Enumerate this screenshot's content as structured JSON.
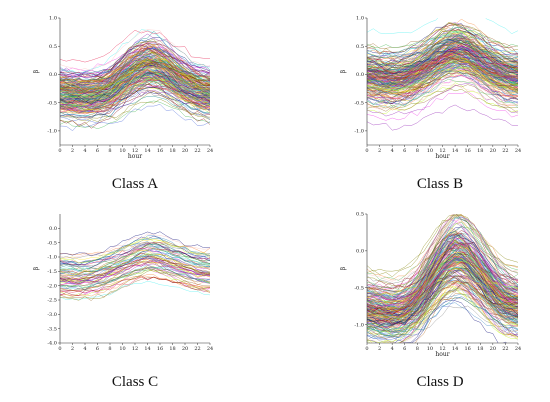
{
  "figure": {
    "background": "#ffffff"
  },
  "chart_data": [
    {
      "type": "line",
      "caption": "Class A",
      "xlabel": "hour",
      "ylabel": "β",
      "xlim": [
        0,
        24
      ],
      "ylim": [
        -1.25,
        1.0
      ],
      "xticks": [
        0,
        2,
        4,
        6,
        8,
        10,
        12,
        14,
        16,
        18,
        20,
        22,
        24
      ],
      "yticks": [
        1.0,
        0.5,
        0.0,
        -0.5,
        -1.0
      ],
      "ytick_labels": [
        "1.0",
        "0.5",
        "0.0",
        "-0.5",
        "-1.0"
      ],
      "series_count": 220,
      "series_summary": {
        "x": [
          0,
          2,
          4,
          6,
          8,
          10,
          12,
          14,
          16,
          18,
          20,
          22,
          24
        ],
        "mean": [
          -0.35,
          -0.38,
          -0.4,
          -0.38,
          -0.3,
          -0.12,
          0.05,
          0.15,
          0.1,
          -0.05,
          -0.2,
          -0.3,
          -0.35
        ],
        "spread": 0.25
      }
    },
    {
      "type": "line",
      "caption": "Class B",
      "xlabel": "hour",
      "ylabel": "β",
      "xlim": [
        0,
        24
      ],
      "ylim": [
        -1.25,
        1.0
      ],
      "xticks": [
        0,
        2,
        4,
        6,
        8,
        10,
        12,
        14,
        16,
        18,
        20,
        22,
        24
      ],
      "yticks": [
        1.0,
        0.5,
        0.0,
        -0.5,
        -1.0
      ],
      "ytick_labels": [
        "1.0",
        "0.5",
        "0.0",
        "-0.5",
        "-1.0"
      ],
      "series_count": 220,
      "series_summary": {
        "x": [
          0,
          2,
          4,
          6,
          8,
          10,
          12,
          14,
          16,
          18,
          20,
          22,
          24
        ],
        "mean": [
          -0.05,
          -0.1,
          -0.12,
          -0.1,
          0.0,
          0.15,
          0.3,
          0.4,
          0.35,
          0.2,
          0.05,
          -0.05,
          -0.1
        ],
        "spread": 0.25
      }
    },
    {
      "type": "line",
      "caption": "Class C",
      "xlabel": "",
      "ylabel": "β",
      "xlim": [
        0,
        24
      ],
      "ylim": [
        -4.0,
        0.5
      ],
      "xticks": [
        0,
        2,
        4,
        6,
        8,
        10,
        12,
        14,
        16,
        18,
        20,
        22,
        24
      ],
      "yticks": [
        0.0,
        -0.5,
        -1.0,
        -1.5,
        -2.0,
        -2.5,
        -3.0,
        -3.5,
        -4.0
      ],
      "ytick_labels": [
        "0.0",
        "-0.5",
        "-1.0",
        "-1.5",
        "-2.0",
        "-2.5",
        "-3.0",
        "-3.5",
        "-4.0"
      ],
      "series_count": 70,
      "series_summary": {
        "x": [
          0,
          2,
          4,
          6,
          8,
          10,
          12,
          14,
          16,
          18,
          20,
          22,
          24
        ],
        "mean": [
          -1.65,
          -1.7,
          -1.7,
          -1.6,
          -1.45,
          -1.25,
          -1.05,
          -0.9,
          -1.0,
          -1.15,
          -1.3,
          -1.45,
          -1.5
        ],
        "spread": 0.35
      }
    },
    {
      "type": "line",
      "caption": "Class D",
      "xlabel": "hour",
      "ylabel": "β",
      "xlim": [
        0,
        24
      ],
      "ylim": [
        -1.25,
        0.5
      ],
      "xticks": [
        0,
        2,
        4,
        6,
        8,
        10,
        12,
        14,
        16,
        18,
        20,
        22,
        24
      ],
      "yticks": [
        0.5,
        0.0,
        -0.5,
        -1.0
      ],
      "ytick_labels": [
        "0.5",
        "0.0",
        "-0.5",
        "-1.0"
      ],
      "series_count": 220,
      "series_summary": {
        "x": [
          0,
          2,
          4,
          6,
          8,
          10,
          12,
          14,
          16,
          18,
          20,
          22,
          24
        ],
        "mean": [
          -0.75,
          -0.8,
          -0.82,
          -0.78,
          -0.65,
          -0.4,
          -0.15,
          0.0,
          -0.1,
          -0.3,
          -0.5,
          -0.65,
          -0.7
        ],
        "spread": 0.2
      }
    }
  ],
  "palette": [
    "#e6194b",
    "#3cb44b",
    "#ffe119",
    "#4363d8",
    "#f58231",
    "#911eb4",
    "#46f0f0",
    "#f032e6",
    "#bcf60c",
    "#fabebe",
    "#008080",
    "#9a6324",
    "#800000",
    "#808000",
    "#000075",
    "#808080",
    "#2f7fbf",
    "#b5651d"
  ]
}
